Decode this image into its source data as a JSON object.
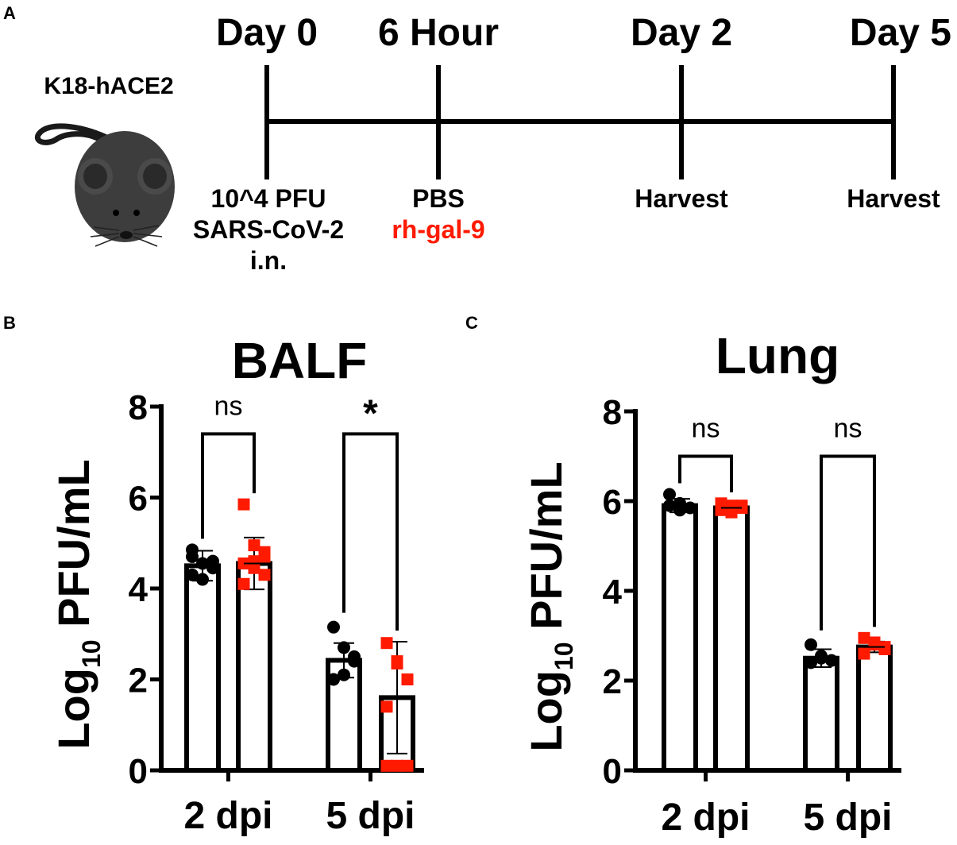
{
  "panels": {
    "a": {
      "letter": "A"
    },
    "b": {
      "letter": "B"
    },
    "c": {
      "letter": "C"
    }
  },
  "timeline": {
    "mouse_label": "K18-hACE2",
    "points": [
      {
        "title": "Day 0",
        "lines": [
          {
            "text": "10^4 PFU",
            "color": "#000000"
          },
          {
            "text": "SARS-CoV-2",
            "color": "#000000"
          },
          {
            "text": "i.n.",
            "color": "#000000"
          }
        ]
      },
      {
        "title": "6 Hour",
        "lines": [
          {
            "text": "PBS",
            "color": "#000000"
          },
          {
            "text": "rh-gal-9",
            "color": "#ff1a00"
          }
        ]
      },
      {
        "title": "Day 2",
        "lines": [
          {
            "text": "Harvest",
            "color": "#000000"
          }
        ]
      },
      {
        "title": "Day 5",
        "lines": [
          {
            "text": "Harvest",
            "color": "#000000"
          }
        ]
      }
    ]
  },
  "colors": {
    "pbs": "#000000",
    "gal9": "#ff1a00"
  },
  "chart_data": [
    {
      "type": "bar",
      "title": "BALF",
      "ylabel_main": "Log",
      "ylabel_sub": "10",
      "ylabel_rest": " PFU/mL",
      "ylim": [
        0,
        8
      ],
      "yticks": [
        "0",
        "2",
        "4",
        "6",
        "8"
      ],
      "categories": [
        "2 dpi",
        "5 dpi"
      ],
      "series": [
        {
          "color": "#000000",
          "marker": "circle",
          "values": [
            4.5,
            2.42
          ],
          "sd": [
            0.33,
            0.38
          ],
          "points": [
            [
              4.85,
              4.55,
              4.45,
              4.3,
              4.2,
              4.6,
              4.7
            ],
            [
              3.15,
              2.7,
              2.4,
              2.0,
              2.1,
              2.5
            ]
          ]
        },
        {
          "color": "#ff1a00",
          "marker": "square",
          "values": [
            4.55,
            1.6
          ],
          "sd": [
            0.57,
            1.23
          ],
          "points": [
            [
              5.85,
              4.95,
              4.8,
              4.55,
              4.45,
              4.3,
              4.1,
              4.6,
              4.7
            ],
            [
              2.8,
              2.35,
              2.0,
              1.4,
              0.1,
              0.1,
              0.1,
              2.4
            ]
          ]
        }
      ],
      "significance": [
        "ns",
        "*"
      ]
    },
    {
      "type": "bar",
      "title": "Lung",
      "ylabel_main": "Log",
      "ylabel_sub": "10",
      "ylabel_rest": " PFU/mL",
      "ylim": [
        0,
        8
      ],
      "yticks": [
        "0",
        "2",
        "4",
        "6",
        "8"
      ],
      "categories": [
        "2 dpi",
        "5 dpi"
      ],
      "series": [
        {
          "color": "#000000",
          "marker": "circle",
          "values": [
            5.9,
            2.5
          ],
          "sd": [
            0.15,
            0.2
          ],
          "points": [
            [
              6.15,
              5.95,
              5.85,
              5.9,
              5.8
            ],
            [
              2.8,
              2.55,
              2.45,
              2.4,
              2.5
            ]
          ]
        },
        {
          "color": "#ff1a00",
          "marker": "square",
          "values": [
            5.85,
            2.75
          ],
          "sd": [
            0.1,
            0.12
          ],
          "points": [
            [
              5.95,
              5.9,
              5.85,
              5.8,
              5.75,
              5.9
            ],
            [
              2.95,
              2.85,
              2.75,
              2.6,
              2.8,
              2.7
            ]
          ]
        }
      ],
      "significance": [
        "ns",
        "ns"
      ]
    }
  ]
}
